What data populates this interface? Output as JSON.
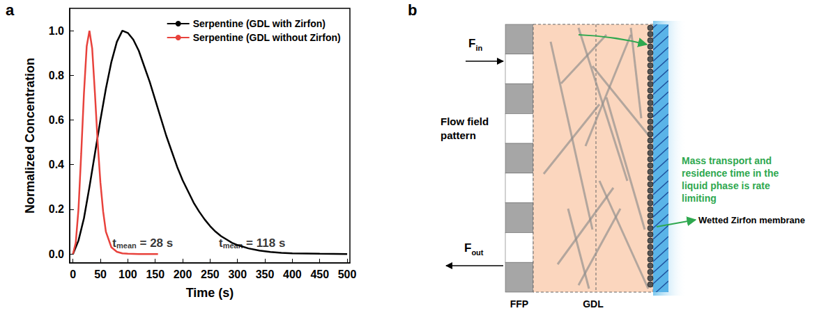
{
  "panel_letters": [
    "a",
    "b"
  ],
  "chart_data": {
    "type": "line",
    "x_label": "Time (s)",
    "y_label": "Normalized Concentration",
    "xlim": [
      -6,
      505
    ],
    "ylim": [
      -0.04,
      1.1
    ],
    "xticks": [
      0,
      50,
      100,
      150,
      200,
      250,
      300,
      350,
      400,
      450,
      500
    ],
    "yticks": [
      {
        "value": 0,
        "label": "0.0"
      },
      0.2,
      0.4,
      0.6,
      0.8,
      {
        "value": 1,
        "label": "1.0"
      }
    ],
    "grid": false,
    "legend": "upper right",
    "series": [
      {
        "name": "Serpentine (GDL with Zirfon)",
        "color": "#000000",
        "x": [
          0,
          10,
          20,
          30,
          40,
          50,
          60,
          70,
          80,
          90,
          100,
          110,
          120,
          130,
          140,
          150,
          160,
          170,
          180,
          190,
          200,
          210,
          220,
          230,
          240,
          250,
          260,
          270,
          280,
          290,
          300,
          320,
          340,
          360,
          380,
          400,
          450,
          500
        ],
        "values": [
          0.0,
          0.06,
          0.16,
          0.3,
          0.45,
          0.6,
          0.74,
          0.86,
          0.95,
          1.0,
          0.99,
          0.96,
          0.91,
          0.84,
          0.77,
          0.69,
          0.61,
          0.53,
          0.46,
          0.39,
          0.33,
          0.28,
          0.23,
          0.19,
          0.155,
          0.125,
          0.1,
          0.08,
          0.065,
          0.05,
          0.04,
          0.025,
          0.015,
          0.009,
          0.005,
          0.003,
          0.001,
          0.0
        ]
      },
      {
        "name": "Serpentine (GDL without Zirfon)",
        "color": "#e8423c",
        "x": [
          0,
          5,
          10,
          15,
          20,
          25,
          30,
          35,
          40,
          45,
          50,
          55,
          60,
          70,
          80,
          90,
          100,
          120,
          155
        ],
        "values": [
          0.0,
          0.05,
          0.2,
          0.45,
          0.72,
          0.93,
          1.0,
          0.92,
          0.72,
          0.5,
          0.32,
          0.19,
          0.1,
          0.03,
          0.01,
          0.003,
          0.001,
          0.0,
          0.0
        ]
      }
    ],
    "annotations": [
      {
        "base": "t",
        "subscript": "mean",
        "text": " = 28 s",
        "x": 72,
        "y": 0.05
      },
      {
        "base": "t",
        "subscript": "mean",
        "text": " = 118 s",
        "x": 266,
        "y": 0.05
      }
    ]
  },
  "diagram": {
    "inlet": {
      "base": "F",
      "subscript": "in"
    },
    "outlet": {
      "base": "F",
      "subscript": "out"
    },
    "flow_field_label": "Flow field pattern",
    "layer_labels": [
      "FFP",
      "GDL"
    ],
    "note": "Mass transport and residence time in the liquid phase is rate limiting",
    "membrane_label": "Wetted Zirfon membrane"
  }
}
